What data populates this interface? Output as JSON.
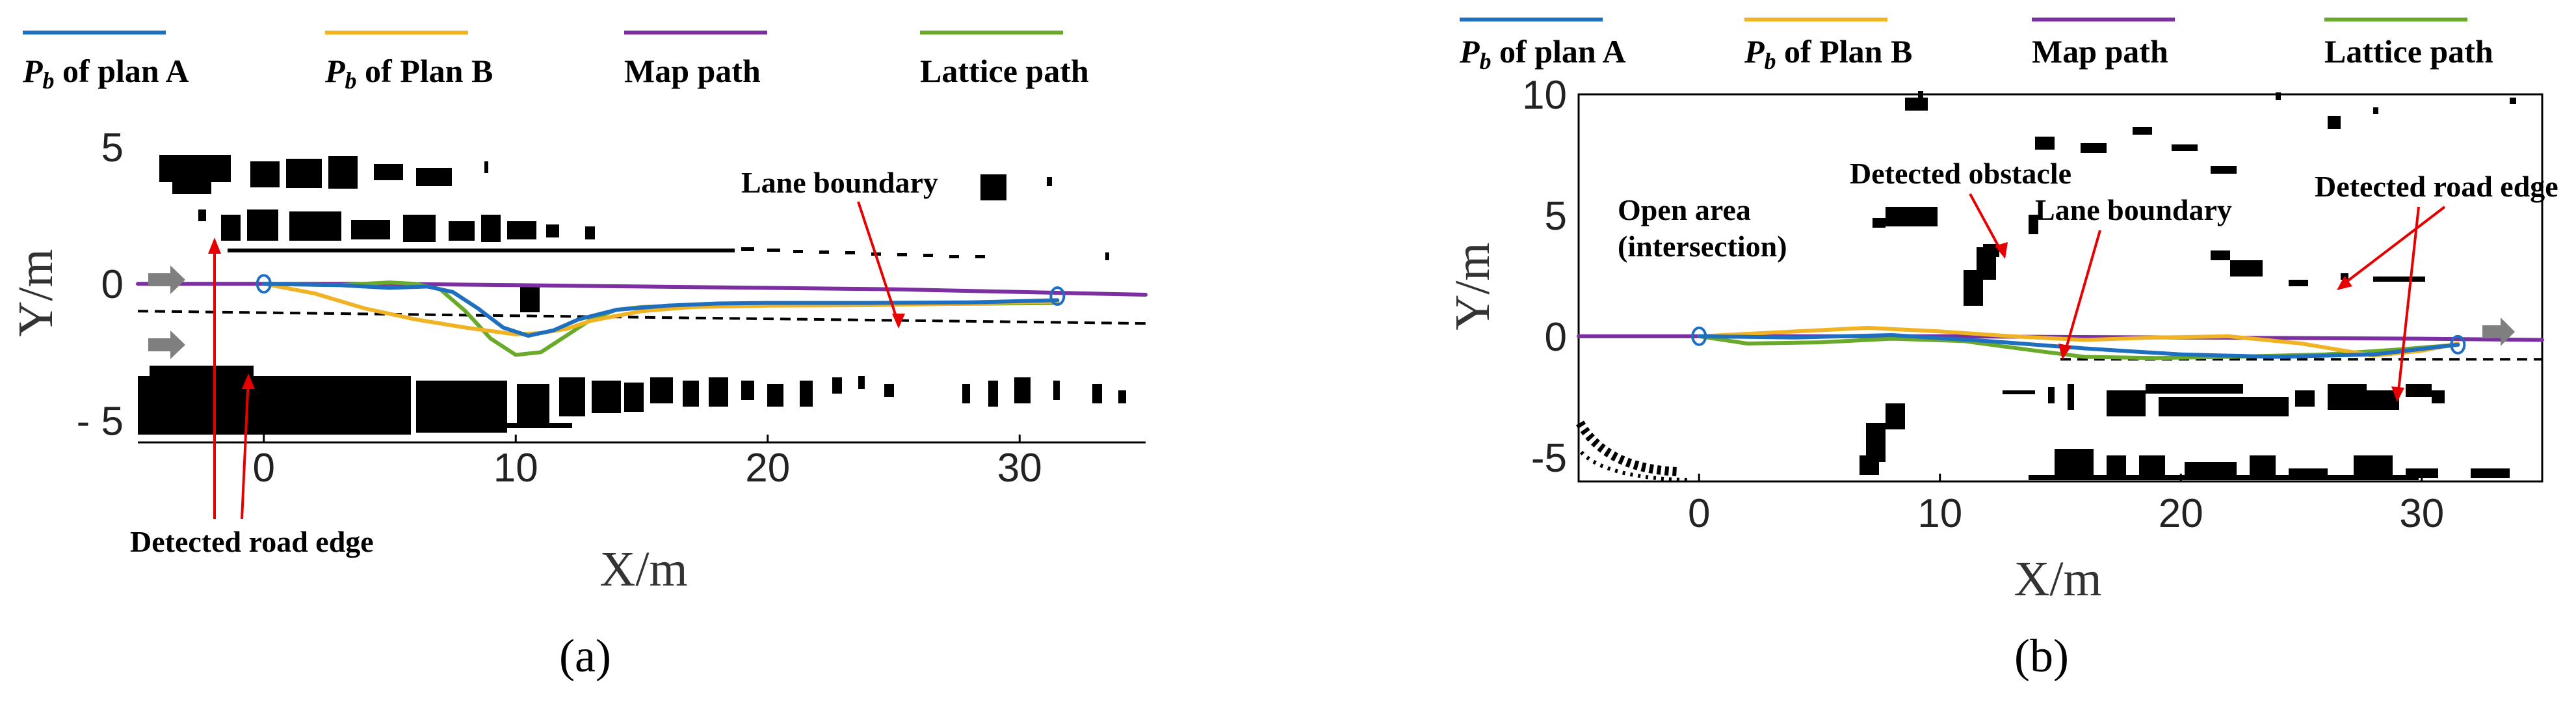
{
  "chart_data": [
    {
      "panel": "(a)",
      "type": "line",
      "xlabel": "X/m",
      "ylabel": "Y/m",
      "xlim": [
        -5,
        35
      ],
      "ylim": [
        -5.8,
        5.5
      ],
      "xticks": [
        0,
        10,
        20,
        30
      ],
      "yticks": [
        5,
        0,
        -5
      ],
      "ytick_labels": [
        "5",
        "0",
        "- 5"
      ],
      "legend": {
        "placement": "top",
        "entries": [
          {
            "series": "plan_a",
            "label_pre": "P",
            "label_sub": "b",
            "label_post": " of plan A"
          },
          {
            "series": "plan_b",
            "label_pre": "P",
            "label_sub": "b",
            "label_post": " of Plan B"
          },
          {
            "series": "map",
            "label_pre": "",
            "label_sub": "",
            "label_post": "Map path"
          },
          {
            "series": "lattice",
            "label_pre": "",
            "label_sub": "",
            "label_post": "Lattice path"
          }
        ]
      },
      "series": [
        {
          "key": "plan_a",
          "color": "#1f6fc0",
          "x": [
            0,
            3,
            5,
            6.5,
            7.5,
            8.5,
            9.5,
            10.5,
            11.5,
            12.5,
            14,
            16,
            18,
            20,
            24,
            28,
            31.5
          ],
          "y": [
            0,
            -0.05,
            -0.15,
            -0.1,
            -0.3,
            -0.9,
            -1.6,
            -1.9,
            -1.7,
            -1.3,
            -0.95,
            -0.8,
            -0.72,
            -0.7,
            -0.7,
            -0.68,
            -0.6
          ]
        },
        {
          "key": "plan_b",
          "color": "#f0b323",
          "x": [
            0,
            2,
            4,
            6,
            8,
            10,
            11,
            12,
            13,
            15,
            17,
            20,
            24,
            28,
            31.5
          ],
          "y": [
            0,
            -0.35,
            -0.9,
            -1.3,
            -1.6,
            -1.85,
            -1.8,
            -1.65,
            -1.35,
            -1.0,
            -0.85,
            -0.8,
            -0.78,
            -0.72,
            -0.65
          ]
        },
        {
          "key": "map",
          "color": "#7b2fa0",
          "x": [
            -5,
            0,
            5,
            10,
            15,
            20,
            25,
            30,
            35
          ],
          "y": [
            0,
            0,
            0,
            -0.05,
            -0.1,
            -0.15,
            -0.2,
            -0.3,
            -0.4
          ]
        },
        {
          "key": "lattice",
          "color": "#6aaa2a",
          "x": [
            0,
            3,
            5,
            6,
            7,
            8,
            9,
            10,
            11,
            12,
            13,
            14,
            15,
            17,
            20,
            25,
            31.5
          ],
          "y": [
            0,
            -0.05,
            0.05,
            0.0,
            -0.2,
            -1.0,
            -2.0,
            -2.6,
            -2.5,
            -1.9,
            -1.3,
            -0.95,
            -0.85,
            -0.8,
            -0.78,
            -0.75,
            -0.7
          ]
        }
      ],
      "lane_boundary": {
        "x": [
          -5,
          35
        ],
        "y": [
          -1.0,
          -1.45
        ]
      },
      "endpoint_markers": [
        [
          0,
          0
        ],
        [
          31.5,
          -0.45
        ]
      ],
      "annotations": [
        "Lane boundary",
        "Detected road edge"
      ]
    },
    {
      "panel": "(b)",
      "type": "line",
      "xlabel": "X/m",
      "ylabel": "Y/m",
      "xlim": [
        -5,
        35
      ],
      "ylim": [
        -6,
        10
      ],
      "xticks": [
        0,
        10,
        20,
        30
      ],
      "yticks": [
        10,
        5,
        0,
        -5
      ],
      "ytick_labels": [
        "10",
        "5",
        "0",
        "-5"
      ],
      "legend": {
        "placement": "top",
        "entries": [
          {
            "series": "plan_a",
            "label_pre": "P",
            "label_sub": "b",
            "label_post": " of plan A"
          },
          {
            "series": "plan_b",
            "label_pre": "P",
            "label_sub": "b",
            "label_post": " of Plan B"
          },
          {
            "series": "map",
            "label_pre": "",
            "label_sub": "",
            "label_post": "Map path"
          },
          {
            "series": "lattice",
            "label_pre": "",
            "label_sub": "",
            "label_post": "Lattice path"
          }
        ]
      },
      "series": [
        {
          "key": "plan_a",
          "color": "#1f6fc0",
          "x": [
            0,
            4,
            8,
            12,
            16,
            20,
            24,
            28,
            31.5
          ],
          "y": [
            0,
            -0.05,
            0.05,
            -0.2,
            -0.5,
            -0.75,
            -0.85,
            -0.75,
            -0.35
          ]
        },
        {
          "key": "plan_b",
          "color": "#f0b323",
          "x": [
            0,
            4,
            7,
            10,
            13,
            16,
            19,
            22,
            25,
            28,
            30,
            31.5
          ],
          "y": [
            0,
            0.2,
            0.35,
            0.2,
            0.0,
            -0.15,
            -0.05,
            0.0,
            -0.3,
            -0.8,
            -0.6,
            -0.3
          ]
        },
        {
          "key": "map",
          "color": "#7b2fa0",
          "x": [
            -5,
            0,
            10,
            20,
            30,
            35
          ],
          "y": [
            0,
            0,
            0,
            -0.05,
            -0.1,
            -0.15
          ]
        },
        {
          "key": "lattice",
          "color": "#6aaa2a",
          "x": [
            0,
            2,
            5,
            8,
            11,
            14,
            16,
            19,
            22,
            26,
            29,
            31.5
          ],
          "y": [
            0,
            -0.3,
            -0.25,
            -0.1,
            -0.2,
            -0.6,
            -0.85,
            -0.9,
            -0.85,
            -0.75,
            -0.55,
            -0.35
          ]
        }
      ],
      "lane_boundary": {
        "x": [
          15,
          35
        ],
        "y": [
          -0.95,
          -0.95
        ]
      },
      "endpoint_markers": [
        [
          0,
          0
        ],
        [
          31.5,
          -0.35
        ]
      ],
      "annotations": [
        "Open area",
        "(intersection)",
        "Detected obstacle",
        "Lane boundary",
        "Detected road edge"
      ]
    }
  ]
}
